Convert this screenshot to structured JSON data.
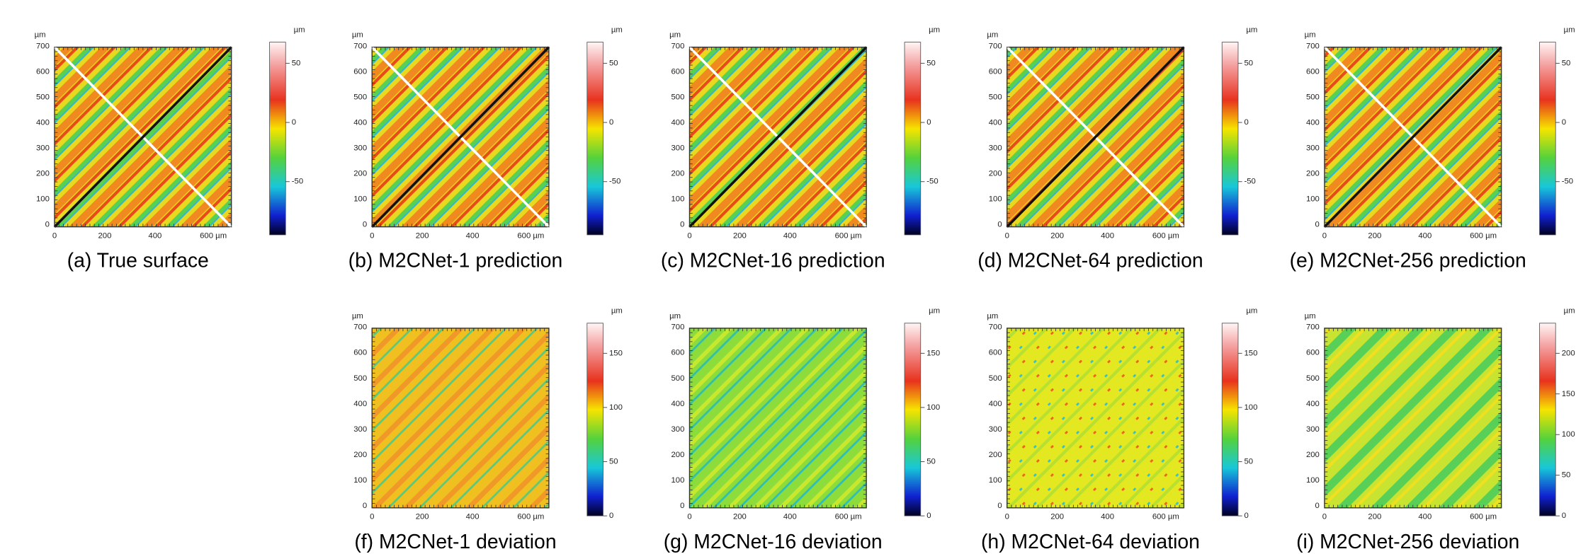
{
  "axes": {
    "unit": "µm",
    "x_ticks": [
      "0",
      "200",
      "400",
      "600 µm"
    ],
    "y_ticks": [
      "0",
      "100",
      "200",
      "300",
      "400",
      "500",
      "600",
      "700"
    ]
  },
  "panels": [
    {
      "caption": "(a) True surface",
      "colorbar_ticks": [
        "50",
        "0",
        "-50"
      ]
    },
    {
      "caption": "(b) M2CNet-1 prediction",
      "colorbar_ticks": [
        "50",
        "0",
        "-50"
      ]
    },
    {
      "caption": "(c) M2CNet-16 prediction",
      "colorbar_ticks": [
        "50",
        "0",
        "-50"
      ]
    },
    {
      "caption": "(d) M2CNet-64 prediction",
      "colorbar_ticks": [
        "50",
        "0",
        "-50"
      ]
    },
    {
      "caption": "(e) M2CNet-256 prediction",
      "colorbar_ticks": [
        "50",
        "0",
        "-50"
      ]
    },
    {
      "caption": "(f) M2CNet-1 deviation",
      "colorbar_ticks": [
        "150",
        "100",
        "50",
        "0"
      ]
    },
    {
      "caption": "(g) M2CNet-16 deviation",
      "colorbar_ticks": [
        "150",
        "100",
        "50",
        "0"
      ]
    },
    {
      "caption": "(h) M2CNet-64 deviation",
      "colorbar_ticks": [
        "150",
        "100",
        "50",
        "0"
      ]
    },
    {
      "caption": "(i) M2CNet-256 deviation",
      "colorbar_ticks": [
        "200",
        "150",
        "100",
        "50",
        "0"
      ]
    }
  ]
}
